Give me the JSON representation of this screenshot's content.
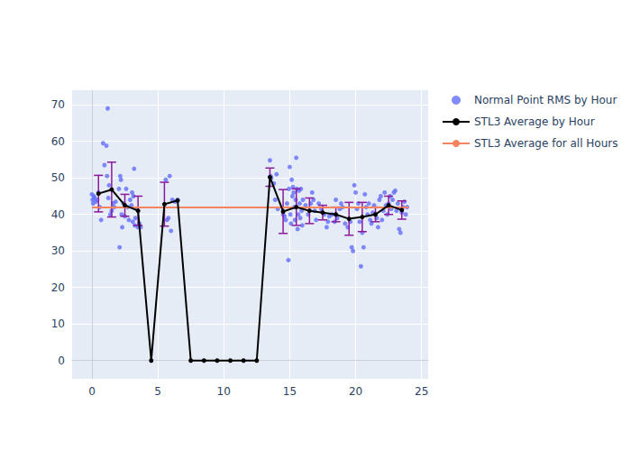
{
  "chart_data": {
    "type": "scatter",
    "xlim": [
      -1.5,
      25.5
    ],
    "xticks": [
      0,
      5,
      10,
      15,
      20,
      25
    ],
    "ylim": [
      -5,
      74
    ],
    "yticks": [
      0,
      10,
      20,
      30,
      40,
      50,
      60,
      70
    ],
    "grid": true,
    "legend": "upper right",
    "series": [
      {
        "name": "Normal Point RMS by Hour",
        "type": "scatter",
        "color": "#636efa",
        "marker": "circle",
        "x": [
          0,
          0.05,
          0.1,
          0.15,
          0.2,
          0.3,
          0.4,
          0.5,
          0.6,
          0.7,
          0.85,
          0.95,
          1.1,
          1.2,
          1.15,
          1.3,
          1.25,
          1.4,
          1.5,
          1.6,
          1.7,
          1.8,
          2.05,
          2.1,
          2.15,
          2.2,
          2.25,
          2.3,
          2.4,
          2.5,
          2.6,
          2.7,
          2.8,
          2.9,
          3.0,
          3.05,
          3.1,
          3.15,
          3.2,
          3.25,
          3.3,
          3.4,
          3.5,
          3.6,
          3.7,
          5.6,
          5.7,
          5.8,
          5.9,
          6.0,
          6.1,
          6.3,
          6.5,
          13.5,
          13.55,
          13.6,
          13.8,
          13.9,
          14.0,
          14.1,
          14.5,
          14.6,
          14.7,
          14.8,
          14.9,
          14.95,
          15.0,
          15.05,
          15.1,
          15.15,
          15.2,
          15.25,
          15.3,
          15.35,
          15.4,
          15.45,
          15.5,
          15.55,
          15.6,
          15.65,
          15.7,
          15.75,
          15.8,
          15.85,
          15.9,
          15.95,
          16.0,
          16.2,
          16.4,
          16.6,
          16.7,
          16.8,
          16.9,
          17.0,
          17.2,
          17.4,
          17.6,
          17.8,
          17.9,
          18.0,
          18.2,
          18.4,
          18.5,
          18.6,
          18.8,
          18.9,
          19.0,
          19.2,
          19.4,
          19.6,
          19.7,
          19.8,
          19.9,
          20.0,
          20.1,
          20.2,
          20.3,
          20.4,
          20.5,
          20.6,
          20.7,
          20.8,
          20.9,
          21.0,
          21.1,
          21.2,
          21.3,
          21.4,
          21.6,
          21.7,
          21.8,
          21.9,
          22.0,
          22.1,
          22.2,
          22.3,
          22.4,
          22.5,
          22.6,
          22.7,
          22.8,
          22.9,
          23.0,
          23.1,
          23.2,
          23.3,
          23.4,
          23.5,
          23.6,
          23.7,
          23.8,
          23.9
        ],
        "values": [
          45.5,
          44,
          43,
          45,
          44.5,
          43.5,
          44,
          46,
          42,
          38.5,
          59.5,
          53.5,
          58.8,
          69,
          50.5,
          48,
          44.5,
          40,
          41,
          43,
          42,
          43.5,
          47,
          31,
          50.5,
          49.5,
          40,
          36.5,
          43,
          39.5,
          47,
          42,
          38.5,
          44,
          42.5,
          46,
          38,
          45,
          52.5,
          37,
          39,
          41.5,
          36.5,
          37.5,
          36.5,
          49.5,
          38.5,
          39,
          50.5,
          35.5,
          44,
          43.5,
          44,
          54.8,
          50.5,
          50,
          48.5,
          44,
          51,
          41.5,
          40,
          39.5,
          38.5,
          43,
          27.5,
          47,
          53,
          40,
          37.5,
          49.5,
          45,
          47.5,
          46,
          42,
          38.5,
          44,
          55.5,
          47,
          36,
          40,
          46.5,
          43,
          39,
          47,
          41,
          37,
          44,
          42.5,
          40,
          43,
          46,
          44,
          41,
          38.5,
          43,
          41.5,
          40,
          36.5,
          38,
          39.5,
          40,
          38,
          44,
          39,
          41.5,
          43,
          42,
          37.5,
          36.5,
          38,
          31,
          30,
          48,
          46,
          41.5,
          43,
          38,
          25.8,
          35,
          31,
          45.5,
          42,
          40,
          43,
          38.5,
          37.5,
          40.5,
          42.5,
          39,
          36.5,
          44,
          45,
          38.5,
          41,
          46,
          42.5,
          40,
          43,
          45,
          41.5,
          44,
          46,
          46.5,
          41,
          43,
          36,
          35,
          40.5,
          42,
          43.5,
          40,
          42
        ]
      },
      {
        "name": "STL3 Average by Hour",
        "type": "line",
        "color": "#000000",
        "marker": "circle",
        "x": [
          0.5,
          1.5,
          2.5,
          3.5,
          4.5,
          5.5,
          6.5,
          7.5,
          8.5,
          9.5,
          10.5,
          11.5,
          12.5,
          13.5,
          14.5,
          15.5,
          16.5,
          17.5,
          18.5,
          19.5,
          20.5,
          21.5,
          22.5,
          23.5
        ],
        "values": [
          45.7,
          46.8,
          42.5,
          41.0,
          0,
          42.8,
          43.8,
          0,
          0,
          0,
          0,
          0,
          0,
          50.2,
          40.8,
          42.0,
          41.0,
          40.5,
          40.0,
          38.8,
          39.3,
          40.0,
          42.5,
          41.2
        ],
        "errors": [
          5,
          7.5,
          3,
          4,
          null,
          6,
          null,
          null,
          null,
          null,
          null,
          null,
          null,
          2.5,
          6,
          5,
          3.5,
          2,
          2,
          4.5,
          4,
          2,
          2.5,
          2.5
        ]
      },
      {
        "name": "STL3 Average for all Hours",
        "type": "line",
        "color": "#f4845f",
        "marker": "none",
        "x": [
          0,
          24
        ],
        "values": [
          41.9,
          41.9
        ]
      }
    ]
  }
}
